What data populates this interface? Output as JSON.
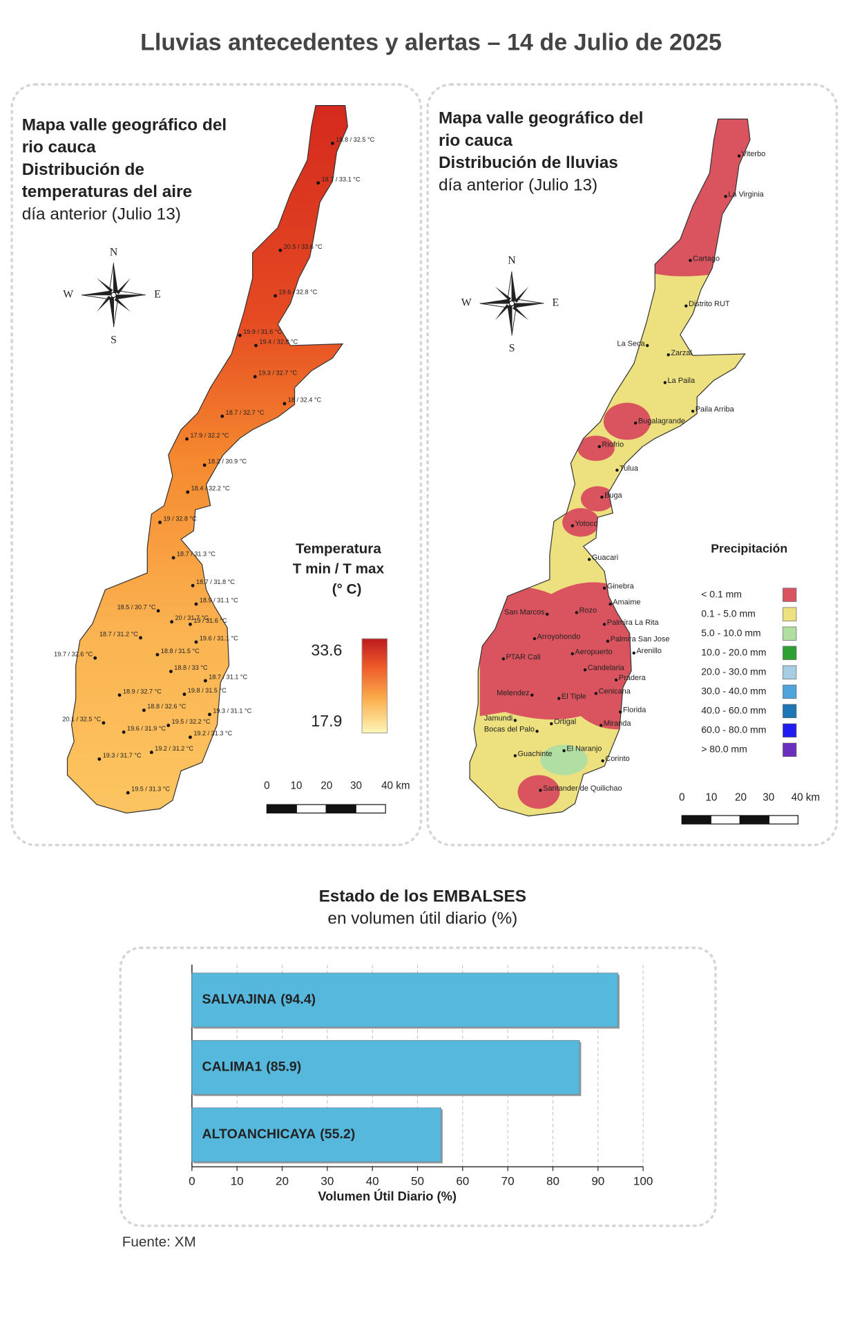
{
  "title": "Lluvias antecedentes y alertas – 14 de Julio de 2025",
  "temperature_map": {
    "title_lines": [
      "Mapa valle geográfico del",
      "rio cauca",
      "Distribución de",
      "temperaturas del aire",
      "día anterior (Julio 13)"
    ],
    "compass": {
      "n": "N",
      "s": "S",
      "w": "W",
      "e": "E"
    },
    "stations": [
      "18.8 / 32.5 °C",
      "18.7 / 33.1 °C",
      "20.5 / 33.6 °C",
      "19.6 / 32.8 °C",
      "19.9 / 31.6 °C",
      "19.4 / 32.8 °C",
      "19.3 / 32.7 °C",
      "18 / 32.4 °C",
      "18.7 / 32.7 °C",
      "17.9 / 32.2 °C",
      "18.2 / 30.9 °C",
      "18.4 / 32.2 °C",
      "19 / 32.8 °C",
      "18.7 / 31.3 °C",
      "18.7 / 31.8 °C",
      "18.9 / 31.1 °C",
      "18.5 / 30.7 °C",
      "20 / 31.7 °C",
      "19 / 31.6 °C",
      "18.7 / 31.2 °C",
      "19.6 / 31.1 °C",
      "19.7 / 32.6 °C",
      "18.8 / 31.5 °C",
      "18.8 / 33 °C",
      "18.7 / 31.1 °C",
      "18.9 / 32.7 °C",
      "19.8 / 31.5 °C",
      "18.8 / 32.6 °C",
      "19.3 / 31.1 °C",
      "20.1 / 32.5 °C",
      "19.5 / 32.2 °C",
      "19.6 / 31.9 °C",
      "19.2 / 31.3 °C",
      "19.3 / 31.7 °C",
      "19.2 / 31.2 °C",
      "19.5 / 31.3 °C"
    ],
    "legend": {
      "title_lines": [
        "Temperatura",
        "T min / T max",
        "(° C)"
      ],
      "max": 33.6,
      "min": 17.9
    },
    "scale_labels": [
      "0",
      "10",
      "20",
      "30",
      "40 km"
    ]
  },
  "rain_map": {
    "title_lines": [
      "Mapa valle geográfico del",
      "rio cauca",
      "Distribución de lluvias",
      "día anterior (Julio 13)"
    ],
    "compass": {
      "n": "N",
      "s": "S",
      "w": "W",
      "e": "E"
    },
    "stations": [
      "Viterbo",
      "La Virginia",
      "Cartago",
      "Distrito RUT",
      "La Seca",
      "Zarzal",
      "La Paila",
      "Paila Arriba",
      "Bugalagrande",
      "Riofrio",
      "Tulua",
      "Buga",
      "Yotoco",
      "Guacari",
      "Ginebra",
      "Amaime",
      "San Marcos",
      "Rozo",
      "Palmira La Rita",
      "Arroyohondo",
      "Palmira San Jose",
      "Aeropuerto",
      "Arenillo",
      "PTAR Cali",
      "Candelaria",
      "Pradera",
      "Cenicana",
      "Melendez",
      "El Tiple",
      "Florida",
      "Jamundi",
      "Bocas del Palo",
      "Ortigal",
      "Miranda",
      "El Naranjo",
      "Guachinte",
      "Corinto",
      "Santander de Quilichao"
    ],
    "legend": {
      "title": "Precipitación",
      "items": [
        {
          "label": "< 0.1 mm",
          "color": "#d9545e"
        },
        {
          "label": "0.1 - 5.0 mm",
          "color": "#ede07e"
        },
        {
          "label": "5.0 - 10.0 mm",
          "color": "#b1dea1"
        },
        {
          "label": "10.0 - 20.0 mm",
          "color": "#2ca030"
        },
        {
          "label": "20.0 - 30.0 mm",
          "color": "#a6cde3"
        },
        {
          "label": "30.0 - 40.0 mm",
          "color": "#4fa4dc"
        },
        {
          "label": "40.0 - 60.0 mm",
          "color": "#1f76b5"
        },
        {
          "label": "60.0 - 80.0 mm",
          "color": "#1f1cef"
        },
        {
          "label": "> 80.0 mm",
          "color": "#6b2fbf"
        }
      ]
    },
    "scale_labels": [
      "0",
      "10",
      "20",
      "30",
      "40 km"
    ]
  },
  "chart_data": {
    "type": "barh",
    "title": "Estado de los EMBALSES",
    "subtitle": "en volumen útil diario (%)",
    "categories": [
      "SALVAJINA",
      "CALIMA1",
      "ALTOANCHICAYA"
    ],
    "values": [
      94.4,
      85.9,
      55.2
    ],
    "value_labels": [
      "(94.4)",
      "(85.9)",
      "(55.2)"
    ],
    "color": "#56b8dc",
    "xlabel": "Volumen Útil Diario (%)",
    "xlim": [
      0,
      100
    ],
    "xticks": [
      0,
      10,
      20,
      30,
      40,
      50,
      60,
      70,
      80,
      90,
      100
    ],
    "grid": true
  },
  "source": "Fuente: XM"
}
